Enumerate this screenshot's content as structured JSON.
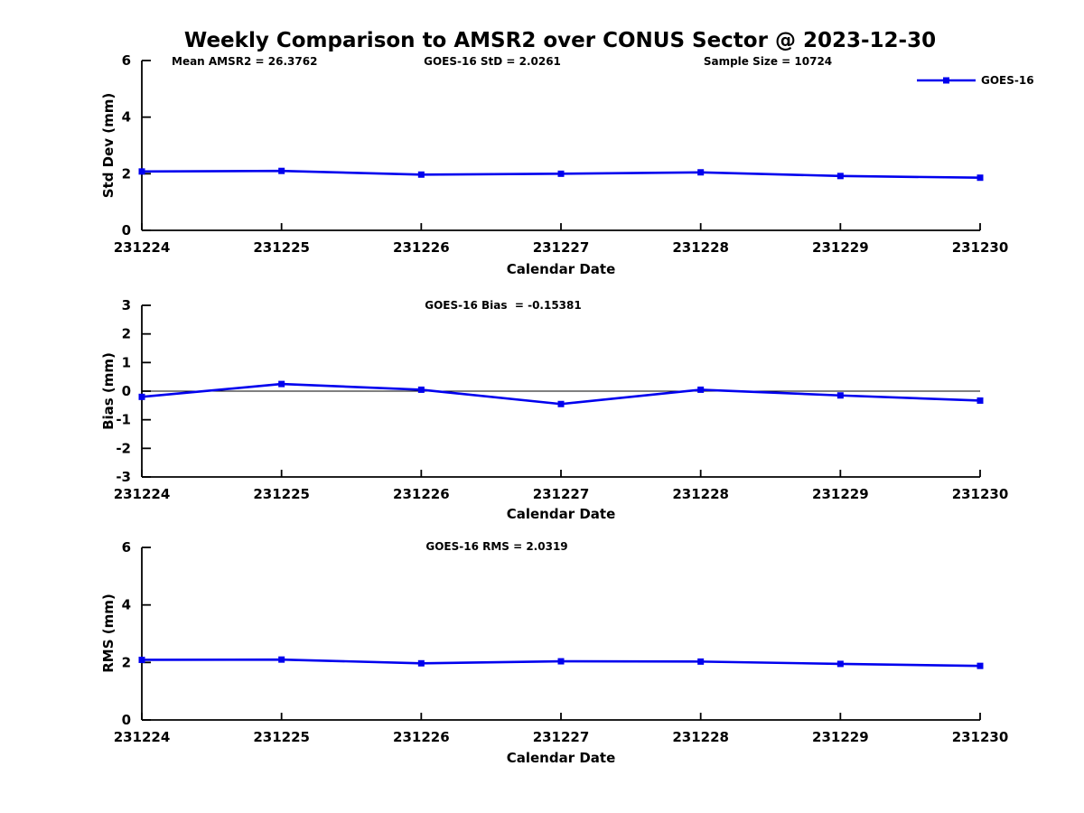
{
  "title": "Weekly Comparison to AMSR2 over CONUS Sector @ 2023-12-30",
  "legend": {
    "label": "GOES-16"
  },
  "colors": {
    "line": "#0000EE",
    "axis": "#000000"
  },
  "chart_data": [
    {
      "type": "line",
      "name": "std-dev-panel",
      "ylabel": "Std Dev (mm)",
      "xlabel": "Calendar Date",
      "ylim": [
        0,
        6
      ],
      "yticks": [
        0,
        2,
        4,
        6
      ],
      "grid": false,
      "legend_position": "top-right",
      "categories": [
        "231224",
        "231225",
        "231226",
        "231227",
        "231228",
        "231229",
        "231230"
      ],
      "series": [
        {
          "name": "GOES-16",
          "values": [
            2.08,
            2.1,
            1.97,
            2.0,
            2.05,
            1.92,
            1.86
          ]
        }
      ],
      "annotations": [
        "Mean AMSR2 = 26.3762",
        "GOES-16 StD = 2.0261",
        "Sample Size = 10724"
      ]
    },
    {
      "type": "line",
      "name": "bias-panel",
      "ylabel": "Bias (mm)",
      "xlabel": "Calendar Date",
      "ylim": [
        -3,
        3
      ],
      "yticks": [
        -3,
        -2,
        -1,
        0,
        1,
        2,
        3
      ],
      "zero_line": true,
      "grid": false,
      "categories": [
        "231224",
        "231225",
        "231226",
        "231227",
        "231228",
        "231229",
        "231230"
      ],
      "series": [
        {
          "name": "GOES-16",
          "values": [
            -0.2,
            0.25,
            0.05,
            -0.45,
            0.05,
            -0.15,
            -0.33
          ]
        }
      ],
      "annotations": [
        "GOES-16 Bias  = -0.15381"
      ]
    },
    {
      "type": "line",
      "name": "rms-panel",
      "ylabel": "RMS (mm)",
      "xlabel": "Calendar Date",
      "ylim": [
        0,
        6
      ],
      "yticks": [
        0,
        2,
        4,
        6
      ],
      "grid": false,
      "categories": [
        "231224",
        "231225",
        "231226",
        "231227",
        "231228",
        "231229",
        "231230"
      ],
      "series": [
        {
          "name": "GOES-16",
          "values": [
            2.09,
            2.1,
            1.97,
            2.04,
            2.03,
            1.95,
            1.88
          ]
        }
      ],
      "annotations": [
        "GOES-16 RMS = 2.0319"
      ]
    }
  ]
}
